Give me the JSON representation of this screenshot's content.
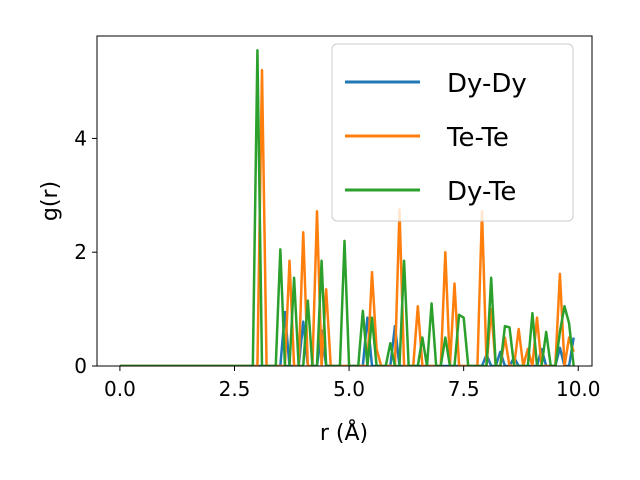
{
  "chart_data": {
    "type": "line",
    "xlabel": "r (Å)",
    "ylabel": "g(r)",
    "xlim": [
      -0.5,
      10.3
    ],
    "ylim": [
      0,
      5.8
    ],
    "xticks": [
      "0.0",
      "2.5",
      "5.0",
      "7.5",
      "10.0"
    ],
    "xtick_values": [
      0,
      2.5,
      5,
      7.5,
      10
    ],
    "yticks": [
      "0",
      "2",
      "4"
    ],
    "ytick_values": [
      0,
      2,
      4
    ],
    "grid": false,
    "legend_position": "top-right",
    "x": [
      0.0,
      0.1,
      0.2,
      0.3,
      0.4,
      0.5,
      0.6,
      0.7,
      0.8,
      0.9,
      1.0,
      1.1,
      1.2,
      1.3,
      1.4,
      1.5,
      1.6,
      1.7,
      1.8,
      1.9,
      2.0,
      2.1,
      2.2,
      2.3,
      2.4,
      2.5,
      2.6,
      2.7,
      2.8,
      2.9,
      3.0,
      3.1,
      3.2,
      3.3,
      3.4,
      3.5,
      3.6,
      3.7,
      3.8,
      3.9,
      4.0,
      4.1,
      4.2,
      4.3,
      4.4,
      4.5,
      4.6,
      4.7,
      4.8,
      4.9,
      5.0,
      5.1,
      5.2,
      5.3,
      5.4,
      5.5,
      5.6,
      5.7,
      5.8,
      5.9,
      6.0,
      6.1,
      6.2,
      6.3,
      6.4,
      6.5,
      6.6,
      6.7,
      6.8,
      6.9,
      7.0,
      7.1,
      7.2,
      7.3,
      7.4,
      7.5,
      7.6,
      7.7,
      7.8,
      7.9,
      8.0,
      8.1,
      8.2,
      8.3,
      8.4,
      8.5,
      8.6,
      8.7,
      8.8,
      8.9,
      9.0,
      9.1,
      9.2,
      9.3,
      9.4,
      9.5,
      9.6,
      9.7,
      9.8,
      9.9
    ],
    "series": [
      {
        "name": "Dy-Dy",
        "color": "#1f77b4",
        "values": [
          0,
          0,
          0,
          0,
          0,
          0,
          0,
          0,
          0,
          0,
          0,
          0,
          0,
          0,
          0,
          0,
          0,
          0,
          0,
          0,
          0,
          0,
          0,
          0,
          0,
          0,
          0,
          0,
          0,
          0,
          0,
          0,
          0,
          0,
          0,
          0,
          0.95,
          0,
          0,
          0,
          0.78,
          0,
          0,
          0,
          0.62,
          0,
          0,
          0,
          0,
          0,
          0,
          0,
          0,
          0,
          0.85,
          0,
          0,
          0,
          0,
          0,
          0.7,
          0,
          0,
          0,
          0,
          0,
          0,
          0,
          0,
          0,
          0,
          0,
          0,
          0,
          0,
          0,
          0,
          0,
          0,
          0,
          0.2,
          0,
          0,
          0.25,
          0,
          0,
          0.15,
          0,
          0,
          0,
          0,
          0,
          0.3,
          0,
          0,
          0,
          0.32,
          0,
          0,
          0.5
        ]
      },
      {
        "name": "Te-Te",
        "color": "#ff7f0e",
        "values": [
          0,
          0,
          0,
          0,
          0,
          0,
          0,
          0,
          0,
          0,
          0,
          0,
          0,
          0,
          0,
          0,
          0,
          0,
          0,
          0,
          0,
          0,
          0,
          0,
          0,
          0,
          0,
          0,
          0,
          0,
          0,
          5.2,
          0,
          0,
          0,
          0,
          0,
          1.85,
          0,
          0,
          2.35,
          0,
          0,
          2.72,
          0,
          1.35,
          0,
          0,
          0,
          0,
          0,
          0,
          0,
          0,
          0,
          1.65,
          0.3,
          0,
          0,
          0,
          0,
          2.75,
          0,
          0,
          0,
          1.05,
          0,
          0,
          0,
          0,
          0,
          2.0,
          0,
          1.45,
          0,
          0,
          0,
          0,
          0,
          2.72,
          0,
          1.0,
          0,
          0,
          0.5,
          0,
          0,
          0.65,
          0,
          0.3,
          0,
          0.85,
          0,
          0,
          0,
          0,
          1.62,
          0,
          0.5,
          0.25
        ]
      },
      {
        "name": "Dy-Te",
        "color": "#2ca02c",
        "values": [
          0,
          0,
          0,
          0,
          0,
          0,
          0,
          0,
          0,
          0,
          0,
          0,
          0,
          0,
          0,
          0,
          0,
          0,
          0,
          0,
          0,
          0,
          0,
          0,
          0,
          0,
          0,
          0,
          0,
          0,
          5.55,
          0,
          0,
          0,
          0,
          2.05,
          0,
          0,
          1.55,
          0,
          0,
          1.15,
          0,
          0,
          1.85,
          0,
          0,
          0,
          0,
          2.2,
          0,
          0,
          0,
          0.97,
          0,
          0.85,
          0,
          0,
          0,
          0.4,
          0,
          0,
          1.85,
          0,
          0,
          0,
          0.5,
          0,
          1.1,
          0,
          0,
          0.5,
          0,
          0,
          0.9,
          0.85,
          0,
          0,
          0,
          0,
          0,
          1.55,
          0,
          0,
          0.7,
          0.68,
          0,
          0,
          0,
          0,
          0.93,
          0,
          0,
          0.6,
          0,
          0,
          0.6,
          1.05,
          0.75,
          0
        ]
      }
    ]
  }
}
